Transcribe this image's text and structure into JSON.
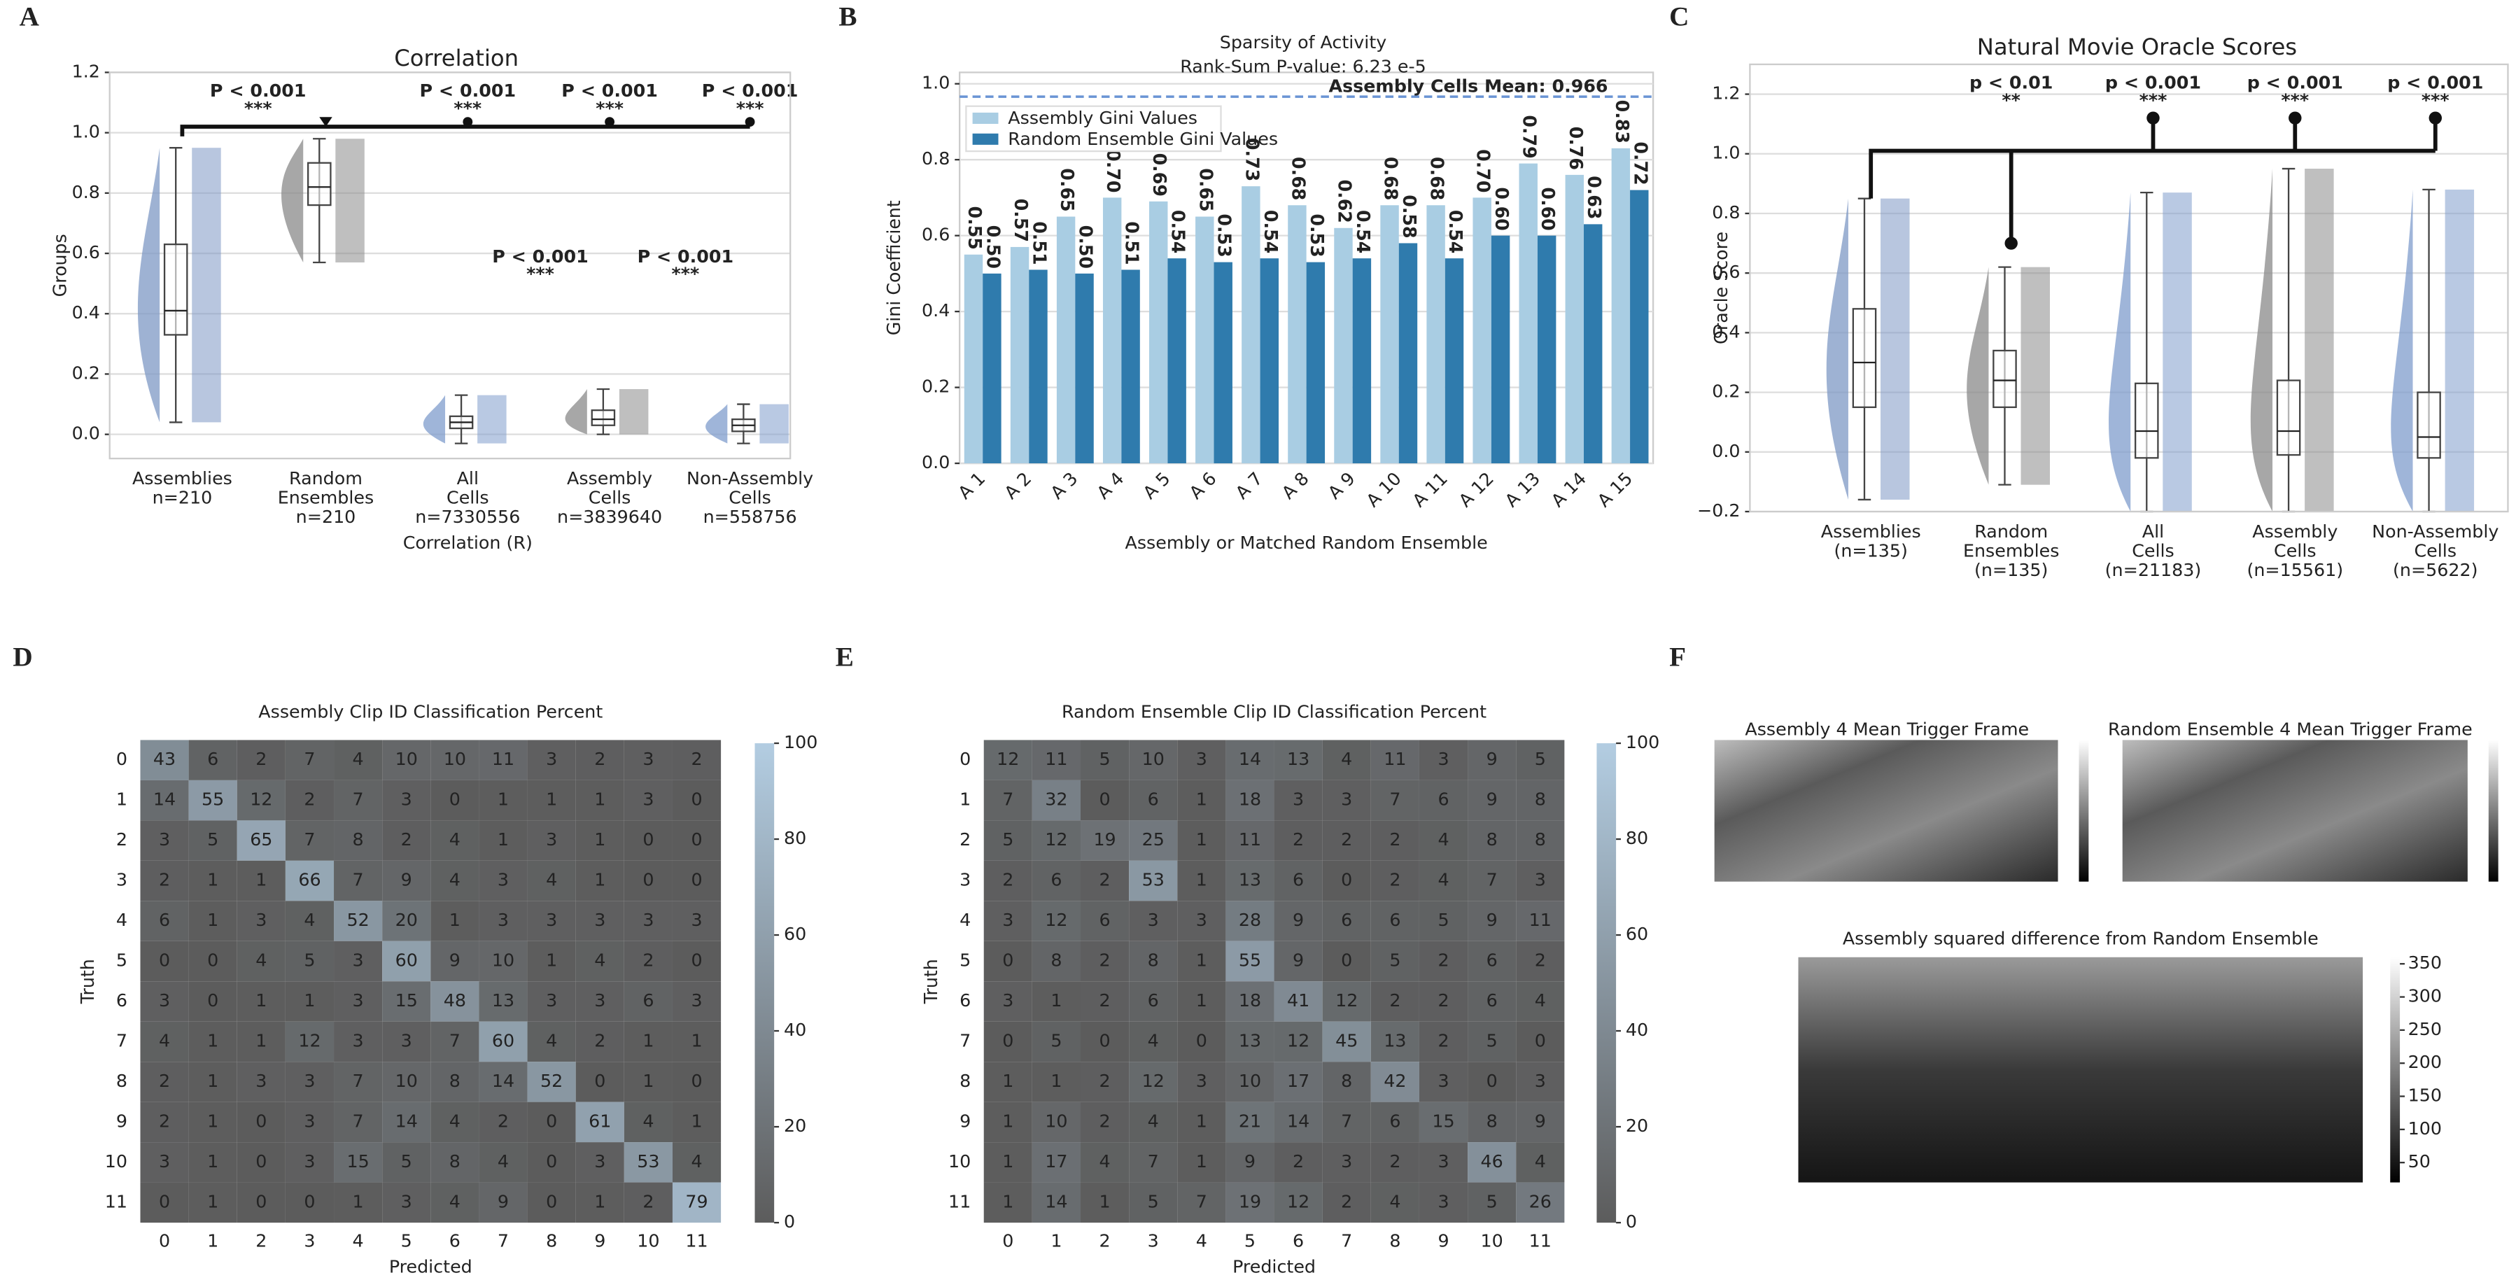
{
  "chart_data": [
    {
      "type": "box",
      "panel_label": "A",
      "title": "Correlation",
      "ylabel": "Groups",
      "xlabel": "Correlation (R)",
      "categories": [
        [
          "Assemblies",
          "n=210"
        ],
        [
          "Random",
          "Ensembles",
          "n=210"
        ],
        [
          "All",
          "Cells",
          "n=7330556"
        ],
        [
          "Assembly",
          "Cells",
          "n=3839640"
        ],
        [
          "Non-Assembly",
          "Cells",
          "n=558756"
        ]
      ],
      "colors": [
        "#7e98c4",
        "#8a8a8a",
        "#7f9ccc",
        "#8a8a8a",
        "#7f9ccc"
      ],
      "boxes": [
        {
          "whislo": 0.04,
          "q1": 0.33,
          "med": 0.41,
          "q3": 0.63,
          "whishi": 0.95
        },
        {
          "whislo": 0.57,
          "q1": 0.76,
          "med": 0.82,
          "q3": 0.9,
          "whishi": 0.98
        },
        {
          "whislo": -0.03,
          "q1": 0.02,
          "med": 0.04,
          "q3": 0.06,
          "whishi": 0.13
        },
        {
          "whislo": 0.0,
          "q1": 0.03,
          "med": 0.05,
          "q3": 0.08,
          "whishi": 0.15
        },
        {
          "whislo": -0.03,
          "q1": 0.01,
          "med": 0.03,
          "q3": 0.05,
          "whishi": 0.1
        }
      ],
      "annotations": [
        {
          "p": "P < 0.001",
          "stars": "***"
        },
        {
          "p": "P < 0.001",
          "stars": "***"
        },
        {
          "p": "P < 0.001",
          "stars": "***"
        },
        {
          "p": "P < 0.001",
          "stars": "***"
        },
        {
          "p": "P < 0.001",
          "stars": "***"
        },
        {
          "p": "P < 0.001",
          "stars": "***"
        }
      ],
      "ylim": [
        -0.08,
        1.2
      ],
      "yticks": [
        {
          "value": 0,
          "label": "0.0"
        },
        0.2,
        0.4,
        0.6,
        0.8,
        {
          "value": 1,
          "label": "1.0"
        },
        1.2
      ],
      "grid": true
    },
    {
      "type": "bar",
      "panel_label": "B",
      "title": "Sparsity of Activity",
      "subtitle": "Rank-Sum P-value: 6.23 e-5",
      "xlabel": "Assembly or Matched Random Ensemble",
      "ylabel": "Gini Coefficient",
      "categories": [
        "A 1",
        "A 2",
        "A 3",
        "A 4",
        "A 5",
        "A 6",
        "A 7",
        "A 8",
        "A 9",
        "A 10",
        "A 11",
        "A 12",
        "A 13",
        "A 14",
        "A 15"
      ],
      "series": [
        {
          "name": "Assembly Gini Values",
          "color": "#a9cde3",
          "values": [
            0.55,
            0.57,
            0.65,
            0.7,
            0.69,
            0.65,
            0.73,
            0.68,
            0.62,
            0.68,
            0.68,
            0.7,
            0.79,
            0.76,
            0.83
          ],
          "value_labels": [
            "0.55",
            "0.57",
            "0.65",
            "0.70",
            "0.69",
            "0.65",
            "0.73",
            "0.68",
            "0.62",
            "0.68",
            "0.68",
            "0.70",
            "0.79",
            "0.76",
            "0.83"
          ]
        },
        {
          "name": "Random Ensemble Gini Values",
          "color": "#2f7bad",
          "values": [
            0.5,
            0.51,
            0.5,
            0.51,
            0.54,
            0.53,
            0.54,
            0.53,
            0.54,
            0.58,
            0.54,
            0.6,
            0.6,
            0.63,
            0.72
          ],
          "value_labels": [
            "0.50",
            "0.51",
            "0.50",
            "0.51",
            "0.54",
            "0.53",
            "0.54",
            "0.53",
            "0.54",
            "0.58",
            "0.54",
            "0.60",
            "0.60",
            "0.63",
            "0.72"
          ]
        }
      ],
      "hline": {
        "value": 0.966,
        "label": "Assembly Cells Mean: 0.966",
        "color": "#6a94d4"
      },
      "ylim": [
        0,
        1.03
      ],
      "yticks": [
        {
          "value": 0,
          "label": "0.0"
        },
        0.2,
        0.4,
        0.6,
        0.8,
        {
          "value": 1,
          "label": "1.0"
        }
      ],
      "grid": true,
      "legend": "upper-left"
    },
    {
      "type": "box",
      "panel_label": "C",
      "title": "Natural Movie Oracle Scores",
      "ylabel": "Oracle Score",
      "categories": [
        [
          "Assemblies",
          "(n=135)"
        ],
        [
          "Random",
          "Ensembles",
          "(n=135)"
        ],
        [
          "All",
          "Cells",
          "(n=21183)"
        ],
        [
          "Assembly",
          "Cells",
          "(n=15561)"
        ],
        [
          "Non-Assembly",
          "Cells",
          "(n=5622)"
        ]
      ],
      "colors": [
        "#7e98c4",
        "#8a8a8a",
        "#7f9ccc",
        "#8a8a8a",
        "#7f9ccc"
      ],
      "boxes": [
        {
          "whislo": -0.16,
          "q1": 0.15,
          "med": 0.3,
          "q3": 0.48,
          "whishi": 0.85
        },
        {
          "whislo": -0.11,
          "q1": 0.15,
          "med": 0.24,
          "q3": 0.34,
          "whishi": 0.62
        },
        {
          "whislo": -0.2,
          "q1": -0.02,
          "med": 0.07,
          "q3": 0.23,
          "whishi": 0.87
        },
        {
          "whislo": -0.2,
          "q1": -0.01,
          "med": 0.07,
          "q3": 0.24,
          "whishi": 0.95
        },
        {
          "whislo": -0.2,
          "q1": -0.02,
          "med": 0.05,
          "q3": 0.2,
          "whishi": 0.88
        }
      ],
      "annotations": [
        {
          "p": "p < 0.01",
          "stars": "**"
        },
        {
          "p": "p < 0.001",
          "stars": "***"
        },
        {
          "p": "p < 0.001",
          "stars": "***"
        },
        {
          "p": "p < 0.001",
          "stars": "***"
        }
      ],
      "ylim": [
        -0.2,
        1.3
      ],
      "yticks": [
        {
          "value": -0.2,
          "label": "−0.2"
        },
        {
          "value": 0,
          "label": "0.0"
        },
        0.2,
        0.4,
        0.6,
        0.8,
        {
          "value": 1,
          "label": "1.0"
        },
        1.2
      ],
      "grid": true
    },
    {
      "type": "heatmap",
      "panel_label": "D",
      "title": "Assembly Clip ID Classification Percent",
      "xlabel": "Predicted",
      "ylabel": "Truth",
      "x_categories": [
        "0",
        "1",
        "2",
        "3",
        "4",
        "5",
        "6",
        "7",
        "8",
        "9",
        "10",
        "11"
      ],
      "y_categories": [
        "0",
        "1",
        "2",
        "3",
        "4",
        "5",
        "6",
        "7",
        "8",
        "9",
        "10",
        "11"
      ],
      "values": [
        [
          43,
          6,
          2,
          7,
          4,
          10,
          10,
          11,
          3,
          2,
          3,
          2
        ],
        [
          14,
          55,
          12,
          2,
          7,
          3,
          0,
          1,
          1,
          1,
          3,
          0
        ],
        [
          3,
          5,
          65,
          7,
          8,
          2,
          4,
          1,
          3,
          1,
          0,
          0
        ],
        [
          2,
          1,
          1,
          66,
          7,
          9,
          4,
          3,
          4,
          1,
          0,
          0
        ],
        [
          6,
          1,
          3,
          4,
          52,
          20,
          1,
          3,
          3,
          3,
          3,
          3
        ],
        [
          0,
          0,
          4,
          5,
          3,
          60,
          9,
          10,
          1,
          4,
          2,
          0
        ],
        [
          3,
          0,
          1,
          1,
          3,
          15,
          48,
          13,
          3,
          3,
          6,
          3
        ],
        [
          4,
          1,
          1,
          12,
          3,
          3,
          7,
          60,
          4,
          2,
          1,
          1
        ],
        [
          2,
          1,
          3,
          3,
          7,
          10,
          8,
          14,
          52,
          0,
          1,
          0
        ],
        [
          2,
          1,
          0,
          3,
          7,
          14,
          4,
          2,
          0,
          61,
          4,
          1
        ],
        [
          3,
          1,
          0,
          3,
          15,
          5,
          8,
          4,
          0,
          3,
          53,
          4
        ],
        [
          0,
          1,
          0,
          0,
          1,
          3,
          4,
          9,
          0,
          1,
          2,
          79
        ]
      ],
      "zlim": [
        0,
        100
      ],
      "colors": [
        "#5c5c5c",
        "#b3cde2"
      ],
      "colorbar_ticks": [
        0,
        20,
        40,
        60,
        80,
        100
      ]
    },
    {
      "type": "heatmap",
      "panel_label": "E",
      "title": "Random Ensemble Clip ID Classification Percent",
      "xlabel": "Predicted",
      "ylabel": "Truth",
      "x_categories": [
        "0",
        "1",
        "2",
        "3",
        "4",
        "5",
        "6",
        "7",
        "8",
        "9",
        "10",
        "11"
      ],
      "y_categories": [
        "0",
        "1",
        "2",
        "3",
        "4",
        "5",
        "6",
        "7",
        "8",
        "9",
        "10",
        "11"
      ],
      "values": [
        [
          12,
          11,
          5,
          10,
          3,
          14,
          13,
          4,
          11,
          3,
          9,
          5
        ],
        [
          7,
          32,
          0,
          6,
          1,
          18,
          3,
          3,
          7,
          6,
          9,
          8
        ],
        [
          5,
          12,
          19,
          25,
          1,
          11,
          2,
          2,
          2,
          4,
          8,
          8
        ],
        [
          2,
          6,
          2,
          53,
          1,
          13,
          6,
          0,
          2,
          4,
          7,
          3
        ],
        [
          3,
          12,
          6,
          3,
          3,
          28,
          9,
          6,
          6,
          5,
          9,
          11
        ],
        [
          0,
          8,
          2,
          8,
          1,
          55,
          9,
          0,
          5,
          2,
          6,
          2
        ],
        [
          3,
          1,
          2,
          6,
          1,
          18,
          41,
          12,
          2,
          2,
          6,
          4
        ],
        [
          0,
          5,
          0,
          4,
          0,
          13,
          12,
          45,
          13,
          2,
          5,
          0
        ],
        [
          1,
          1,
          2,
          12,
          3,
          10,
          17,
          8,
          42,
          3,
          0,
          3
        ],
        [
          1,
          10,
          2,
          4,
          1,
          21,
          14,
          7,
          6,
          15,
          8,
          9
        ],
        [
          1,
          17,
          4,
          7,
          1,
          9,
          2,
          3,
          2,
          3,
          46,
          4
        ],
        [
          1,
          14,
          1,
          5,
          7,
          19,
          12,
          2,
          4,
          3,
          5,
          26
        ]
      ],
      "zlim": [
        0,
        100
      ],
      "colors": [
        "#5c5c5c",
        "#b3cde2"
      ],
      "colorbar_ticks": [
        0,
        20,
        40,
        60,
        80,
        100
      ]
    },
    {
      "type": "image",
      "panel_label": "F",
      "images": [
        {
          "title": "Assembly 4 Mean Trigger Frame"
        },
        {
          "title": "Random Ensemble 4 Mean Trigger Frame"
        },
        {
          "title": "Assembly squared difference from Random Ensemble",
          "zlim": [
            20,
            360
          ],
          "colorbar_ticks": [
            350,
            300,
            250,
            200,
            150,
            100,
            50
          ]
        }
      ]
    }
  ]
}
